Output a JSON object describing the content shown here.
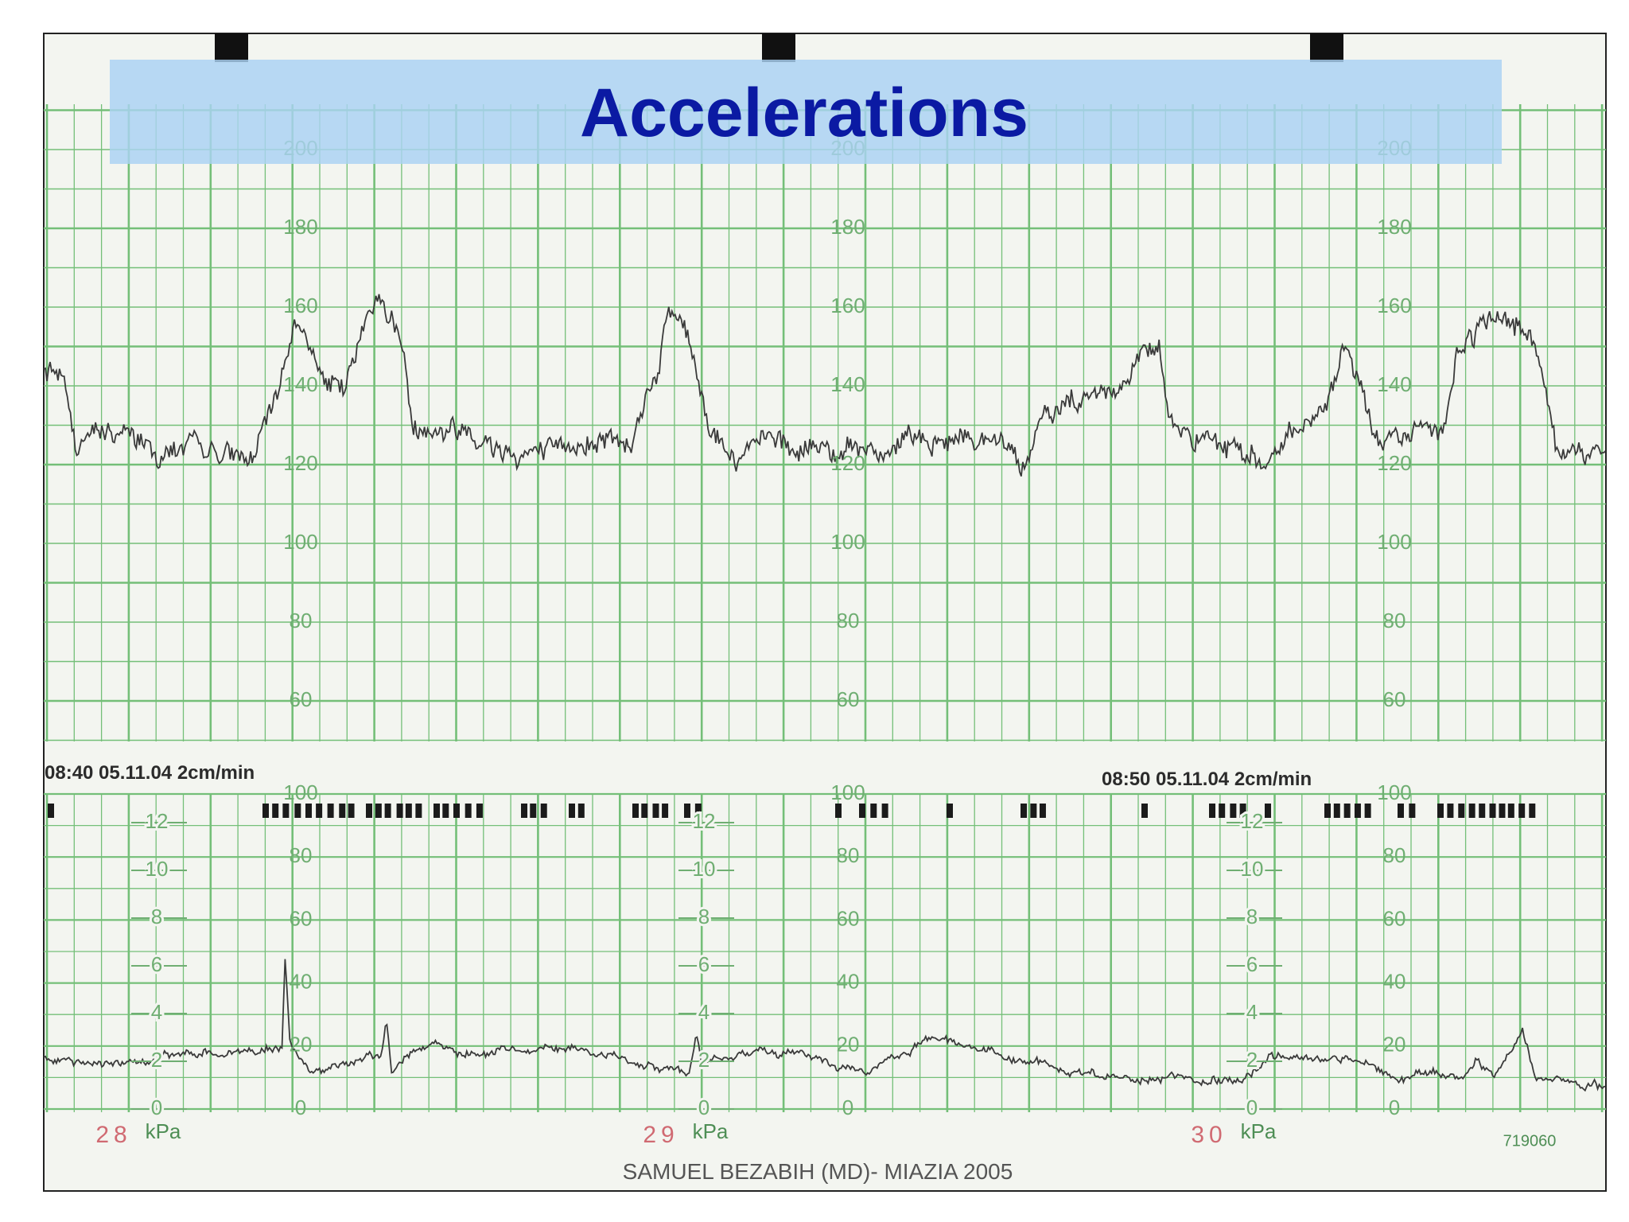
{
  "title": "Accelerations",
  "footer": "SAMUEL BEZABIH (MD)- MIAZIA 2005",
  "strip": {
    "fhr_scale": [
      "200",
      "180",
      "160",
      "140",
      "120",
      "100",
      "80",
      "60"
    ],
    "ua_scale": [
      "100",
      "80",
      "60",
      "40",
      "20",
      "0"
    ],
    "kpa_scale": [
      "12",
      "10",
      "8",
      "6",
      "4",
      "2",
      "0"
    ],
    "kpa_unit": "kPa",
    "timestamps": [
      "08:40 05.11.04 2cm/min",
      "08:50 05.11.04 2cm/min"
    ],
    "page_numbers": [
      "28",
      "29",
      "30"
    ],
    "serial": "719060"
  }
}
